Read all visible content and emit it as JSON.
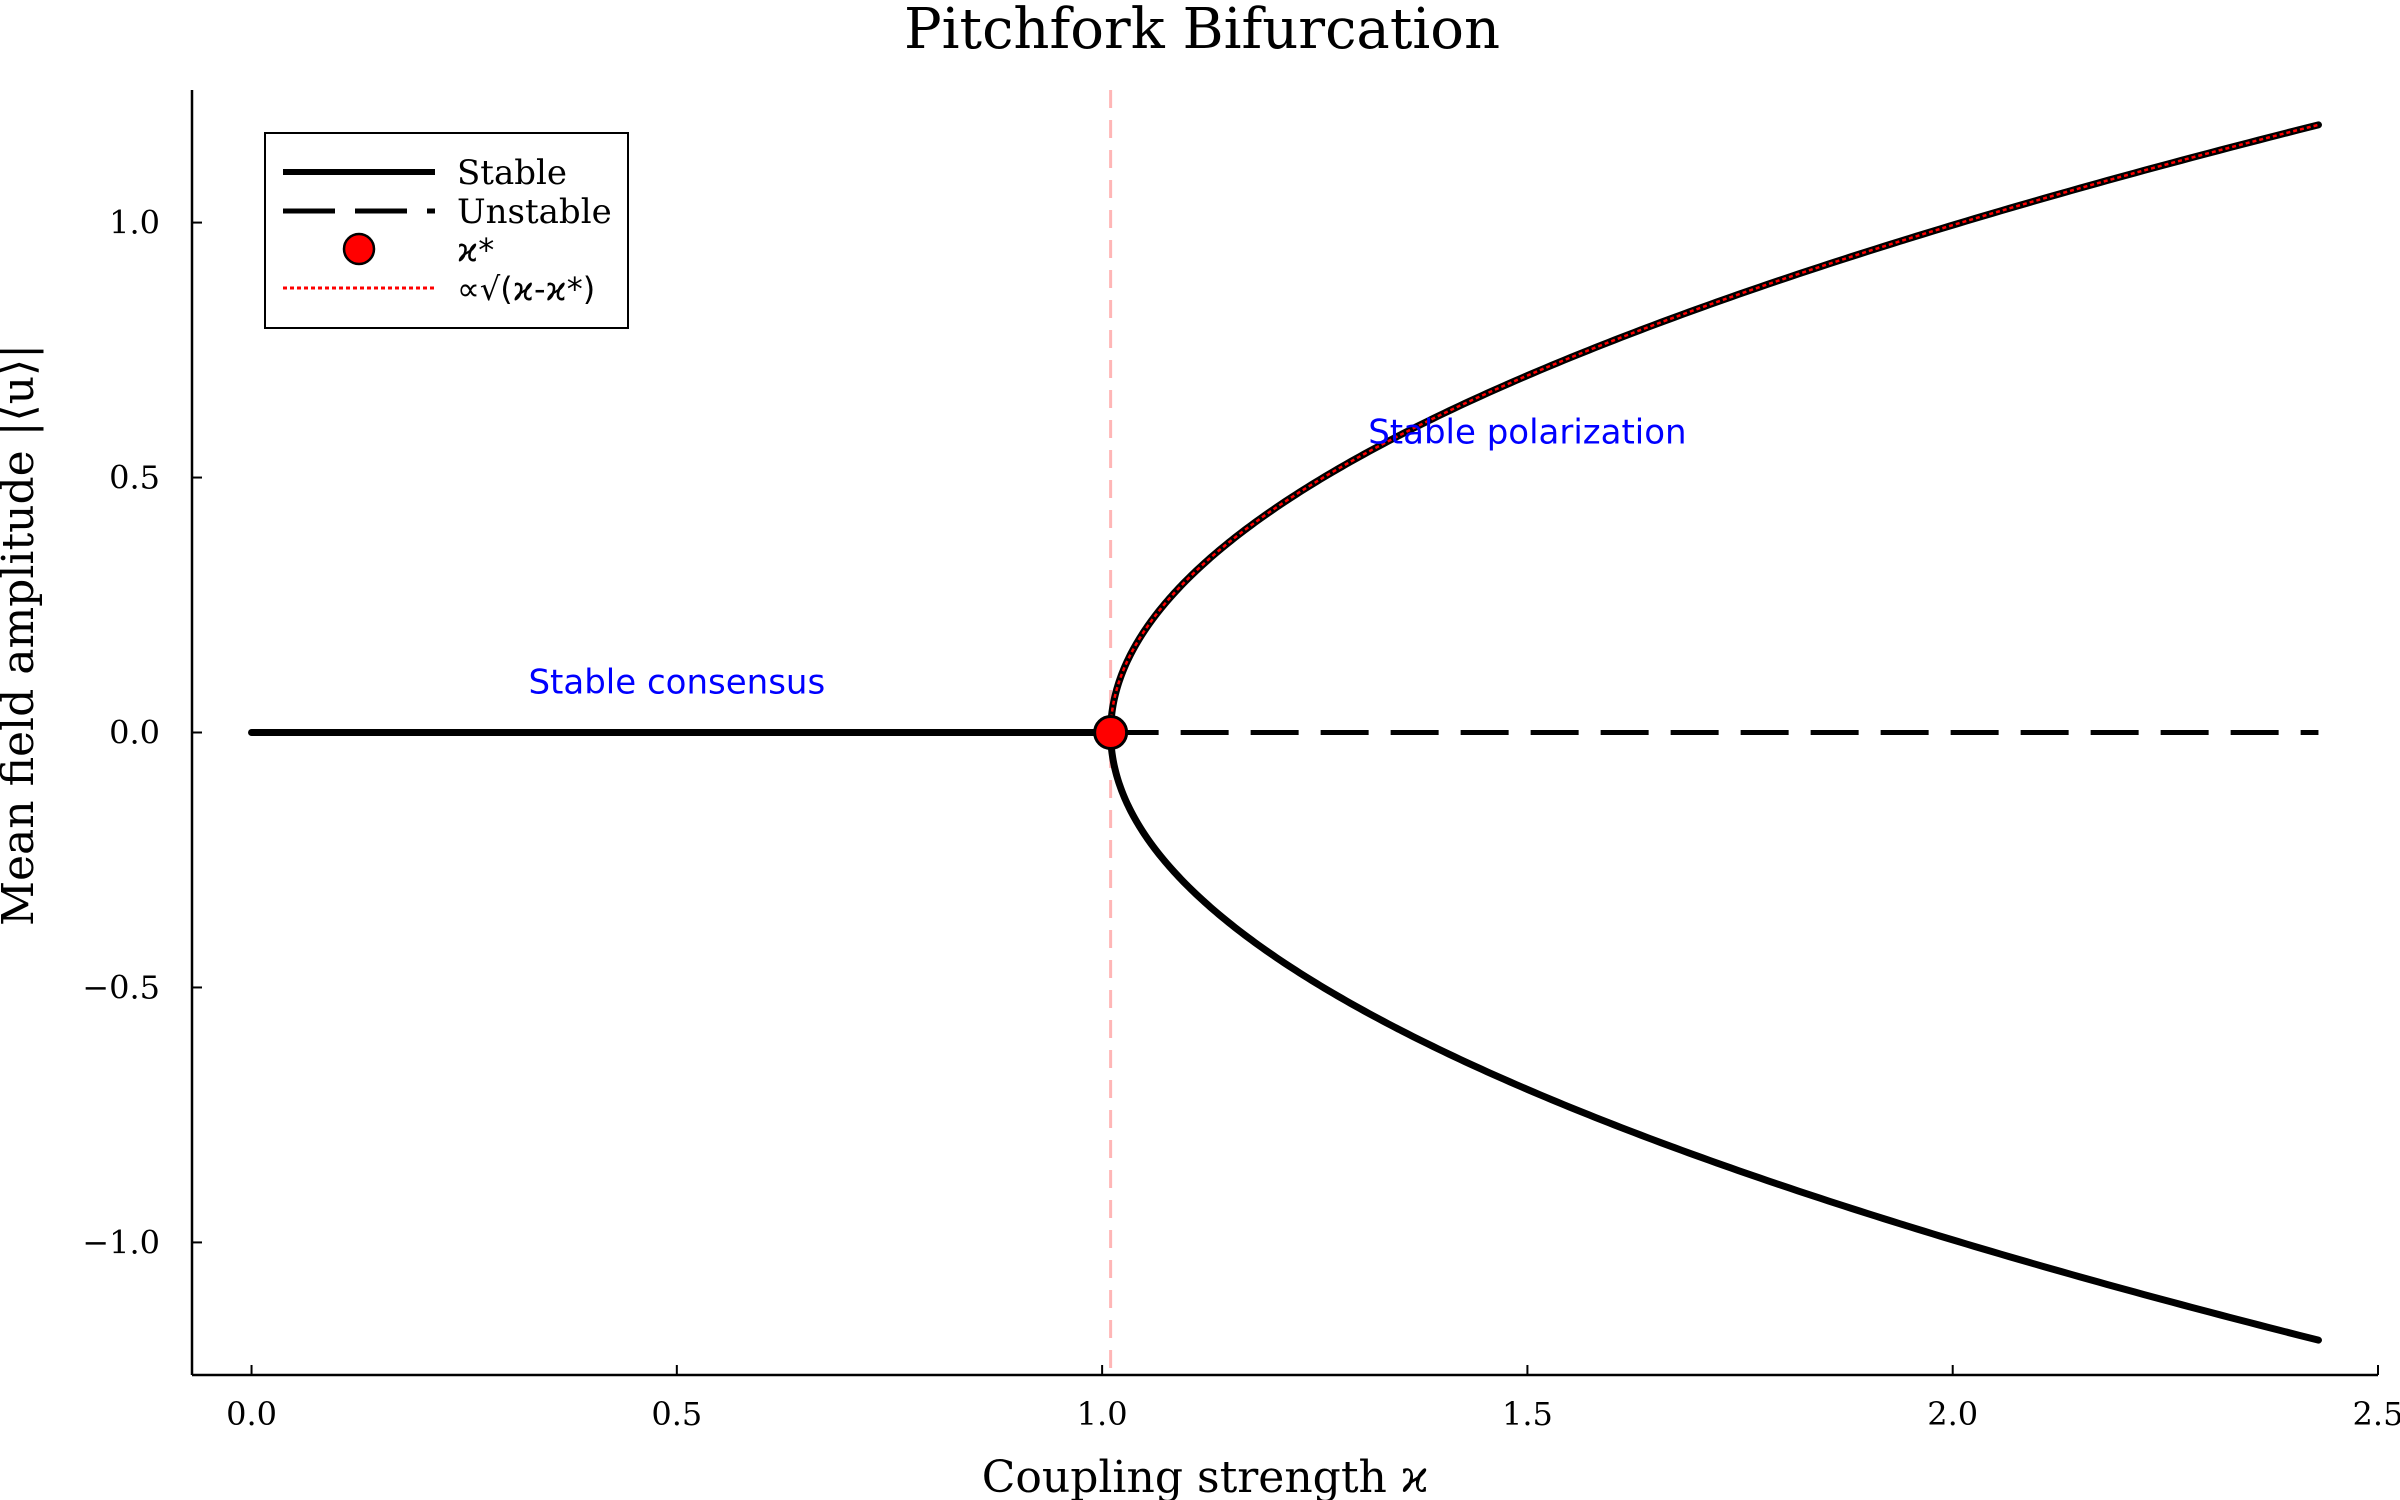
{
  "chart_data": {
    "type": "line",
    "title": "Pitchfork Bifurcation",
    "xlabel": "Coupling strength ϰ",
    "ylabel": "Mean field amplitude |⟨u⟩|",
    "xlim": [
      -0.07,
      2.5
    ],
    "ylim": [
      -1.26,
      1.26
    ],
    "xticks": [
      {
        "value": 0.0,
        "label": "0.0"
      },
      {
        "value": 0.5,
        "label": "0.5"
      },
      {
        "value": 1.0,
        "label": "1.0"
      },
      {
        "value": 1.5,
        "label": "1.5"
      },
      {
        "value": 2.0,
        "label": "2.0"
      },
      {
        "value": 2.5,
        "label": "2.5"
      }
    ],
    "yticks": [
      {
        "value": -1.0,
        "label": "−1.0"
      },
      {
        "value": -0.5,
        "label": "−0.5"
      },
      {
        "value": 0.0,
        "label": "0.0"
      },
      {
        "value": 0.5,
        "label": "0.5"
      },
      {
        "value": 1.0,
        "label": "1.0"
      }
    ],
    "grid": false,
    "legend_position": "top-left",
    "critical_point": {
      "x": 1.01,
      "y": 0.0
    },
    "branch_amplitude": 1.0,
    "x_max": 2.43,
    "series": [
      {
        "name": "Stable",
        "style": "solid",
        "color": "#000000"
      },
      {
        "name": "Unstable",
        "style": "dashed",
        "color": "#000000"
      },
      {
        "name": "ϰ*",
        "style": "marker",
        "color": "#ff0000"
      },
      {
        "name": "∝√(ϰ-ϰ*)",
        "style": "dotted",
        "color": "#ff0000"
      }
    ],
    "vline": {
      "x": 1.01,
      "color": "#ffb6b6"
    },
    "annotations": [
      {
        "text": "Stable consensus",
        "x": 0.5,
        "y": 0.1,
        "color": "#0000ff"
      },
      {
        "text": "Stable polarization",
        "x": 1.5,
        "y": 0.59,
        "color": "#0000ff"
      }
    ]
  }
}
